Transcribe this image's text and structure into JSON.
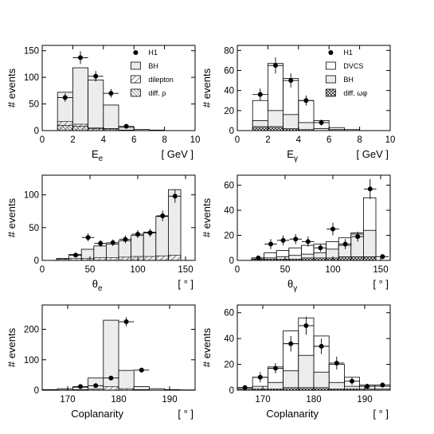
{
  "experiment_label": "H1",
  "colors": {
    "ink": "#000000",
    "bh_fill": "#ececec",
    "background": "#ffffff"
  },
  "chart_data": [
    {
      "id": "panel-e-energy",
      "type": "bar",
      "xlabel": "E",
      "xlabel_sub": "e",
      "xunit": "[ GeV ]",
      "ylabel": "# events",
      "xlim": [
        0,
        10
      ],
      "ylim": [
        0,
        160
      ],
      "xticks": [
        0,
        2,
        4,
        6,
        8,
        10
      ],
      "yticks": [
        0,
        50,
        100,
        150
      ],
      "bin_edges": [
        1,
        2,
        3,
        4,
        5,
        6,
        7,
        8
      ],
      "legend": [
        {
          "name": "H1",
          "style": "marker"
        },
        {
          "name": "BH",
          "style": "fill"
        },
        {
          "name": "dilepton",
          "style": "hatch"
        },
        {
          "name": "diff. ρ",
          "style": "hatch-dense"
        }
      ],
      "series": [
        {
          "name": "BH",
          "style": "fill",
          "values": [
            72,
            118,
            95,
            48,
            6,
            2,
            1
          ]
        },
        {
          "name": "dilepton",
          "style": "hatch",
          "values": [
            17,
            12,
            5,
            4,
            1,
            0,
            0
          ]
        },
        {
          "name": "diff. ρ",
          "style": "hatch-dense",
          "values": [
            10,
            8,
            4,
            3,
            1,
            0,
            0
          ]
        },
        {
          "name": "H1",
          "style": "marker",
          "x": [
            1.5,
            2.5,
            3.5,
            4.5,
            5.5
          ],
          "y": [
            62,
            137,
            102,
            70,
            8
          ],
          "yerr": [
            8,
            12,
            10,
            8,
            3
          ]
        }
      ]
    },
    {
      "id": "panel-gamma-energy",
      "type": "bar",
      "xlabel": "E",
      "xlabel_sub": "γ",
      "xunit": "[ GeV ]",
      "ylabel": "# events",
      "xlim": [
        0,
        10
      ],
      "ylim": [
        0,
        85
      ],
      "xticks": [
        0,
        2,
        4,
        6,
        8,
        10
      ],
      "yticks": [
        0,
        20,
        40,
        60,
        80
      ],
      "bin_edges": [
        1,
        2,
        3,
        4,
        5,
        6,
        7,
        8
      ],
      "legend": [
        {
          "name": "H1",
          "style": "marker"
        },
        {
          "name": "DVCS",
          "style": "open"
        },
        {
          "name": "BH",
          "style": "fill"
        },
        {
          "name": "diff. ωφ",
          "style": "crosshatch"
        }
      ],
      "series": [
        {
          "name": "DVCS",
          "style": "open",
          "values": [
            30,
            67,
            52,
            30,
            10,
            3,
            1
          ]
        },
        {
          "name": "BH",
          "style": "fill",
          "values": [
            10,
            20,
            16,
            8,
            2,
            1,
            0
          ]
        },
        {
          "name": "diff. ωφ",
          "style": "crosshatch",
          "values": [
            4,
            4,
            2,
            1,
            0,
            0,
            0
          ]
        },
        {
          "name": "H1",
          "style": "marker",
          "x": [
            1.5,
            2.5,
            3.5,
            4.5,
            5.5
          ],
          "y": [
            36,
            65,
            50,
            30,
            8
          ],
          "yerr": [
            6,
            8,
            7,
            5,
            3
          ]
        }
      ]
    },
    {
      "id": "panel-e-angle",
      "type": "bar",
      "xlabel": "θ",
      "xlabel_sub": "e",
      "xunit": "[ ° ]",
      "ylabel": "# events",
      "xlim": [
        0,
        160
      ],
      "ylim": [
        0,
        130
      ],
      "xticks": [
        0,
        50,
        100,
        150
      ],
      "yticks": [
        0,
        50,
        100
      ],
      "bin_edges": [
        15,
        28,
        41,
        54,
        67,
        80,
        93,
        106,
        119,
        132,
        145
      ],
      "legend": [],
      "series": [
        {
          "name": "BH",
          "style": "fill",
          "values": [
            3,
            9,
            17,
            22,
            25,
            30,
            38,
            43,
            67,
            108
          ]
        },
        {
          "name": "dilepton",
          "style": "hatch",
          "values": [
            2,
            3,
            3,
            4,
            4,
            5,
            6,
            6,
            7,
            8
          ]
        },
        {
          "name": "H1",
          "style": "marker",
          "x": [
            35,
            48,
            61,
            74,
            87,
            100,
            113,
            126,
            139
          ],
          "y": [
            8,
            35,
            26,
            27,
            32,
            40,
            42,
            68,
            98
          ],
          "yerr": [
            3,
            6,
            5,
            5,
            6,
            6,
            6,
            8,
            10
          ]
        }
      ]
    },
    {
      "id": "panel-gamma-angle",
      "type": "bar",
      "xlabel": "θ",
      "xlabel_sub": "γ",
      "xunit": "[ ° ]",
      "ylabel": "# events",
      "xlim": [
        0,
        160
      ],
      "ylim": [
        0,
        68
      ],
      "xticks": [
        0,
        50,
        100,
        150
      ],
      "yticks": [
        0,
        20,
        40,
        60
      ],
      "bin_edges": [
        15,
        28,
        41,
        54,
        67,
        80,
        93,
        106,
        119,
        132,
        145
      ],
      "legend": [],
      "series": [
        {
          "name": "DVCS",
          "style": "open",
          "values": [
            2,
            6,
            8,
            10,
            12,
            13,
            15,
            18,
            22,
            50
          ]
        },
        {
          "name": "BH",
          "style": "fill",
          "values": [
            1,
            2,
            3,
            4,
            5,
            6,
            9,
            12,
            21,
            24
          ]
        },
        {
          "name": "diff. ωφ",
          "style": "crosshatch",
          "values": [
            1,
            1,
            1,
            1,
            2,
            2,
            2,
            3,
            3,
            3
          ]
        },
        {
          "name": "H1",
          "style": "marker",
          "x": [
            22,
            35,
            48,
            61,
            74,
            87,
            100,
            113,
            126,
            139,
            152
          ],
          "y": [
            2,
            13,
            16,
            17,
            15,
            10,
            25,
            13,
            19,
            57,
            3
          ],
          "yerr": [
            1,
            4,
            4,
            4,
            4,
            3,
            5,
            4,
            4,
            8,
            2
          ]
        }
      ]
    },
    {
      "id": "panel-e-coplanarity",
      "type": "bar",
      "xlabel": "Coplanarity",
      "xlabel_sub": "",
      "xunit": "[ ° ]",
      "ylabel": "# events",
      "xlim": [
        165,
        195
      ],
      "ylim": [
        0,
        280
      ],
      "xticks": [
        170,
        180,
        190
      ],
      "yticks": [
        0,
        100,
        200
      ],
      "bin_edges": [
        165,
        168,
        171,
        174,
        177,
        180,
        183,
        186,
        189,
        192,
        195
      ],
      "legend": [],
      "series": [
        {
          "name": "BH",
          "style": "fill",
          "values": [
            2,
            5,
            10,
            40,
            230,
            65,
            12,
            5,
            2,
            1
          ]
        },
        {
          "name": "dilepton",
          "style": "hatch",
          "values": [
            0,
            1,
            2,
            4,
            12,
            5,
            2,
            0,
            0,
            0
          ]
        },
        {
          "name": "H1",
          "style": "marker",
          "x": [
            172.5,
            175.5,
            178.5,
            181.5,
            184.5
          ],
          "y": [
            12,
            15,
            40,
            225,
            66
          ],
          "yerr": [
            4,
            4,
            6,
            15,
            8
          ]
        }
      ]
    },
    {
      "id": "panel-gamma-coplanarity",
      "type": "bar",
      "xlabel": "Coplanarity",
      "xlabel_sub": "",
      "xunit": "[ ° ]",
      "ylabel": "# events",
      "xlim": [
        165,
        195
      ],
      "ylim": [
        0,
        66
      ],
      "xticks": [
        170,
        180,
        190
      ],
      "yticks": [
        0,
        20,
        40,
        60
      ],
      "bin_edges": [
        165,
        168,
        171,
        174,
        177,
        180,
        183,
        186,
        189,
        192,
        195
      ],
      "legend": [],
      "series": [
        {
          "name": "DVCS",
          "style": "open",
          "values": [
            2,
            10,
            18,
            46,
            56,
            42,
            20,
            10,
            4,
            3
          ]
        },
        {
          "name": "BH",
          "style": "fill",
          "values": [
            1,
            3,
            6,
            15,
            27,
            14,
            6,
            3,
            1,
            1
          ]
        },
        {
          "name": "diff. ωφ",
          "style": "crosshatch",
          "values": [
            0,
            1,
            1,
            2,
            2,
            2,
            1,
            1,
            0,
            0
          ]
        },
        {
          "name": "H1",
          "style": "marker",
          "x": [
            166.5,
            169.5,
            172.5,
            175.5,
            178.5,
            181.5,
            184.5,
            187.5,
            190.5,
            193.5
          ],
          "y": [
            2,
            10,
            17,
            36,
            50,
            34,
            21,
            7,
            3,
            4
          ],
          "yerr": [
            2,
            4,
            4,
            6,
            7,
            6,
            5,
            3,
            2,
            2
          ]
        }
      ]
    }
  ]
}
